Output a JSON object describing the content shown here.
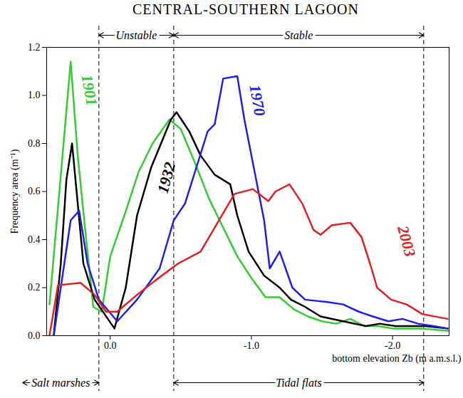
{
  "chart_data": {
    "type": "line",
    "title": "CENTRAL-SOUTHERN LAGOON",
    "x_label": "bottom elevation Zb (m a.m.s.l.)",
    "y_label": "Frequency area (m⁻¹)",
    "xlim": [
      0.45,
      -2.4
    ],
    "xticks": [
      {
        "value": 0,
        "label": "0.0"
      },
      {
        "value": -1,
        "label": "-1.0"
      },
      {
        "value": -2,
        "label": "-2.0"
      }
    ],
    "ylim": [
      0,
      1.2
    ],
    "yticks": [
      {
        "value": 0,
        "label": "0.0"
      },
      {
        "value": 0.2,
        "label": "0.2"
      },
      {
        "value": 0.4,
        "label": "0.4"
      },
      {
        "value": 0.6,
        "label": "0.6"
      },
      {
        "value": 0.8,
        "label": "0.8"
      },
      {
        "value": 1.0,
        "label": "1.0"
      },
      {
        "value": 1.2,
        "label": "1.2"
      }
    ],
    "series": [
      {
        "name": "1901",
        "color": "#33cc33",
        "x": [
          0.43,
          0.36,
          0.28,
          0.23,
          0.17,
          0.12,
          0.06,
          0.0,
          -0.1,
          -0.2,
          -0.3,
          -0.42,
          -0.5,
          -0.6,
          -0.7,
          -0.8,
          -0.9,
          -1.0,
          -1.1,
          -1.2,
          -1.3,
          -1.4,
          -1.5,
          -1.6,
          -1.7,
          -1.8,
          -1.9,
          -2.0,
          -2.2,
          -2.4
        ],
        "values": [
          0.13,
          0.6,
          1.14,
          0.75,
          0.4,
          0.12,
          0.1,
          0.33,
          0.5,
          0.68,
          0.8,
          0.9,
          0.86,
          0.72,
          0.57,
          0.45,
          0.33,
          0.24,
          0.16,
          0.16,
          0.11,
          0.08,
          0.06,
          0.05,
          0.07,
          0.04,
          0.04,
          0.03,
          0.03,
          0.02
        ]
      },
      {
        "name": "1932",
        "color": "#000000",
        "x": [
          0.4,
          0.35,
          0.31,
          0.27,
          0.19,
          0.11,
          -0.03,
          -0.11,
          -0.19,
          -0.29,
          -0.43,
          -0.47,
          -0.56,
          -0.64,
          -0.74,
          -0.85,
          -0.9,
          -0.98,
          -1.09,
          -1.2,
          -1.28,
          -1.38,
          -1.49,
          -1.65,
          -1.81,
          -1.91,
          -2.02,
          -2.23,
          -2.39
        ],
        "values": [
          0,
          0.3,
          0.65,
          0.8,
          0.3,
          0.15,
          0.03,
          0.2,
          0.5,
          0.7,
          0.9,
          0.93,
          0.85,
          0.75,
          0.67,
          0.63,
          0.5,
          0.35,
          0.25,
          0.2,
          0.15,
          0.12,
          0.08,
          0.06,
          0.04,
          0.05,
          0.04,
          0.04,
          0.03
        ]
      },
      {
        "name": "1970",
        "color": "#1f1fe6",
        "x": [
          0.4,
          0.35,
          0.28,
          0.22,
          0.16,
          0.08,
          -0.05,
          -0.19,
          -0.35,
          -0.45,
          -0.53,
          -0.61,
          -0.69,
          -0.74,
          -0.8,
          -0.9,
          -0.95,
          -1.09,
          -1.13,
          -1.2,
          -1.29,
          -1.38,
          -1.54,
          -1.65,
          -1.76,
          -1.86,
          -1.97,
          -2.07,
          -2.18,
          -2.29,
          -2.39
        ],
        "values": [
          0,
          0.2,
          0.48,
          0.52,
          0.3,
          0.15,
          0.06,
          0.15,
          0.28,
          0.48,
          0.55,
          0.7,
          0.85,
          0.88,
          1.07,
          1.08,
          0.9,
          0.48,
          0.28,
          0.35,
          0.2,
          0.15,
          0.14,
          0.13,
          0.1,
          0.08,
          0.06,
          0.07,
          0.05,
          0.04,
          0.03
        ]
      },
      {
        "name": "2003",
        "color": "#e02020",
        "x": [
          0.43,
          0.37,
          0.21,
          0.11,
          0.03,
          -0.05,
          -0.19,
          -0.32,
          -0.48,
          -0.64,
          -0.74,
          -0.88,
          -1.01,
          -1.12,
          -1.17,
          -1.27,
          -1.36,
          -1.44,
          -1.49,
          -1.57,
          -1.7,
          -1.78,
          -1.84,
          -1.89,
          -1.99,
          -2.1,
          -2.21,
          -2.39
        ],
        "values": [
          0,
          0.21,
          0.22,
          0.17,
          0.1,
          0.1,
          0.17,
          0.23,
          0.3,
          0.35,
          0.45,
          0.59,
          0.61,
          0.56,
          0.6,
          0.63,
          0.55,
          0.44,
          0.42,
          0.46,
          0.47,
          0.41,
          0.3,
          0.2,
          0.15,
          0.13,
          0.09,
          0.07
        ]
      }
    ],
    "boundaries": [
      0.08,
      -0.45,
      -2.22
    ],
    "annotations": {
      "top": [
        {
          "text": "Unstable",
          "from": 0.08,
          "to": -0.45
        },
        {
          "text": "Stable",
          "from": -0.45,
          "to": -2.22
        }
      ],
      "bottom": [
        {
          "text": "Salt marshes",
          "from": 0.62,
          "to": 0.08
        },
        {
          "text": "Tidal flats",
          "from": -0.45,
          "to": -2.22
        }
      ]
    }
  }
}
